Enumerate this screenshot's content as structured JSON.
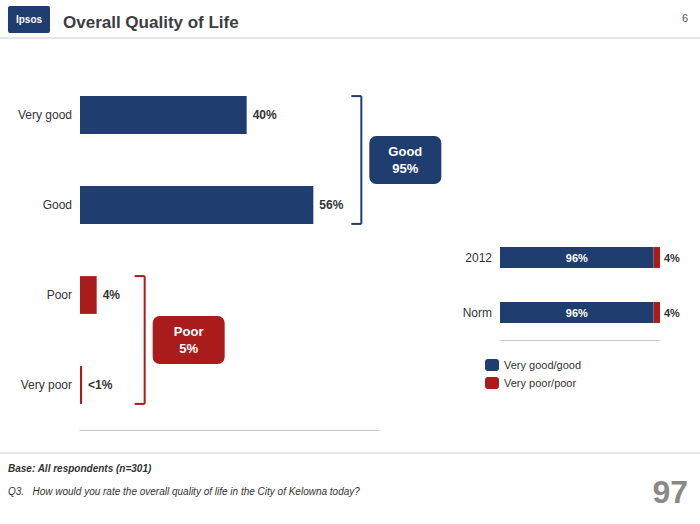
{
  "chart_data": [
    {
      "type": "bar",
      "title": "Overall Quality of Life",
      "orientation": "horizontal",
      "categories": [
        "Very good",
        "Good",
        "Poor",
        "Very poor"
      ],
      "values": [
        40,
        56,
        4,
        0.5
      ],
      "value_labels": [
        "40%",
        "56%",
        "4%",
        "<1%"
      ],
      "colors": [
        "#1f3d6e",
        "#1f3d6e",
        "#aa1b1b",
        "#aa1b1b"
      ],
      "xlim": [
        0,
        72
      ],
      "tick_labels": "y",
      "grid": false,
      "data_labels": true,
      "annotations": [
        {
          "text": "Good\n95%",
          "categories": [
            "Very good",
            "Good"
          ],
          "color": "#1f3d6e"
        },
        {
          "text": "Poor\n5%",
          "categories": [
            "Poor",
            "Very poor"
          ],
          "color": "#aa1b1b"
        },
        "Ipsos",
        "6",
        "Base: All respondents (n=301)",
        "Q3.   How would you rate the overall quality of life in the City of Kelowna today?",
        "97"
      ]
    },
    {
      "type": "bar",
      "orientation": "horizontal",
      "stacked": true,
      "categories": [
        "2012",
        "Norm"
      ],
      "series": [
        {
          "name": "Very good/good",
          "color": "#1f3d6e",
          "values": [
            96,
            96
          ],
          "value_labels": [
            "96%",
            "96%"
          ]
        },
        {
          "name": "Very poor/poor",
          "color": "#aa1b1b",
          "values": [
            4,
            4
          ],
          "value_labels": [
            "4%",
            "4%"
          ]
        }
      ],
      "xlim": [
        0,
        100
      ],
      "tick_labels": "y",
      "grid": false,
      "data_labels": true,
      "legend": "bottom"
    }
  ]
}
